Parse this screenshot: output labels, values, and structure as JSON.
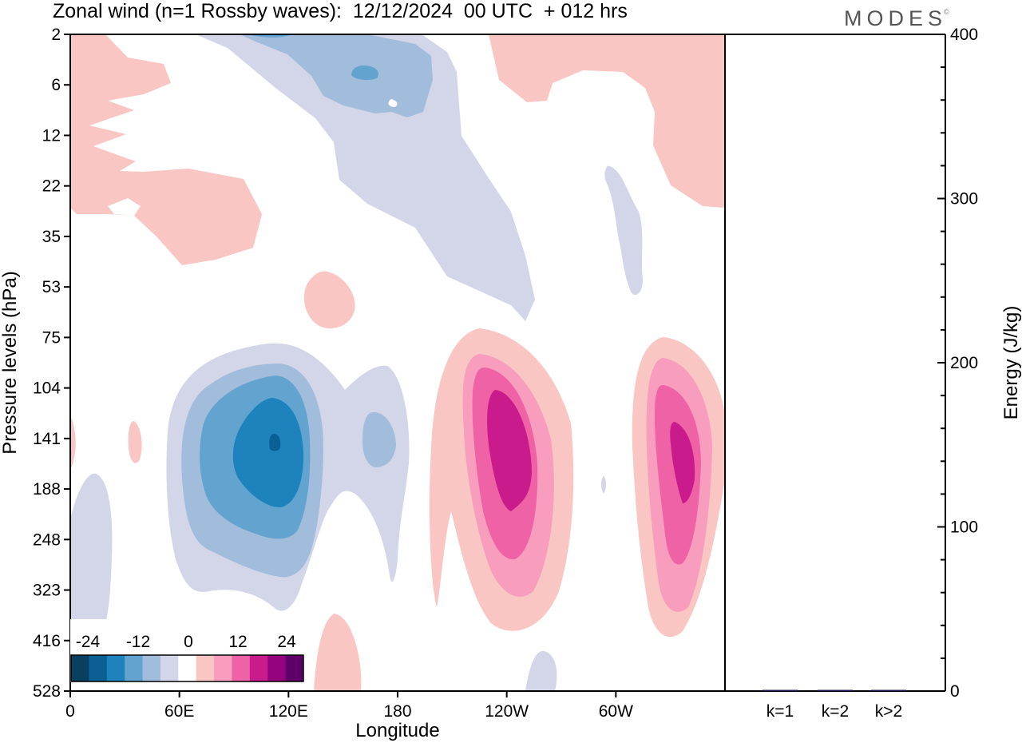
{
  "header": {
    "title": "Zonal wind (n=1 Rossby waves):  12/12/2024  00 UTC  + 012 hrs",
    "brand": "MODES",
    "brand_mark": "©"
  },
  "chart_data": [
    {
      "type": "heatmap",
      "title": "Zonal wind (n=1 Rossby waves):  12/12/2024  00 UTC  + 012 hrs",
      "xlabel": "Longitude",
      "ylabel": "Pressure levels (hPa)",
      "x_ticks": [
        "0",
        "60E",
        "120E",
        "180",
        "120W",
        "60W"
      ],
      "x_tick_values_deg_east": [
        0,
        60,
        120,
        180,
        240,
        300
      ],
      "xlim_deg_east": [
        0,
        360
      ],
      "y_ticks": [
        "2",
        "6",
        "12",
        "22",
        "35",
        "53",
        "75",
        "104",
        "141",
        "188",
        "248",
        "323",
        "416",
        "528"
      ],
      "y_scale": "model levels (pressure decreasing upward)",
      "colorbar": {
        "tick_labels": [
          "-24",
          "-12",
          "0",
          "12",
          "24"
        ],
        "tick_values": [
          -24,
          -12,
          0,
          12,
          24
        ],
        "levels": [
          -30,
          -27,
          -24,
          -21,
          -18,
          -15,
          -12,
          -9,
          -6,
          -3,
          3,
          6,
          9,
          12,
          15,
          18,
          21,
          24,
          27,
          30
        ],
        "colors": [
          "#0b3f5f",
          "#0a5f95",
          "#1e82bd",
          "#62a4cf",
          "#a2bcdc",
          "#d3d6e8",
          "#ffffff",
          "#f9c6c4",
          "#f89dbd",
          "#ef62a5",
          "#c91b8c",
          "#96037f",
          "#5f0068"
        ],
        "placement": "bottom-left"
      },
      "features": [
        {
          "name": "negative core",
          "longitude_deg_east": 112,
          "pressure_hPa": 141,
          "value": -22
        },
        {
          "name": "positive core",
          "longitude_deg_east": 242,
          "pressure_hPa": 141,
          "value": 22
        },
        {
          "name": "positive core",
          "longitude_deg_east": 340,
          "pressure_hPa": 150,
          "value": 19
        },
        {
          "name": "negative upper lobe",
          "longitude_deg_east": 160,
          "pressure_hPa": 6,
          "value": -8
        }
      ],
      "grid": false
    },
    {
      "type": "bar",
      "ylabel": "Energy (J/kg)",
      "categories": [
        "k=1",
        "k=2",
        "k>2"
      ],
      "values": [
        0.5,
        0.3,
        0.4
      ],
      "ylim": [
        0,
        400
      ],
      "y_ticks": [
        "0",
        "100",
        "200",
        "300",
        "400"
      ],
      "y_tick_values": [
        0,
        100,
        200,
        300,
        400
      ],
      "bar_color": "#1a1a5e",
      "grid": false
    }
  ]
}
